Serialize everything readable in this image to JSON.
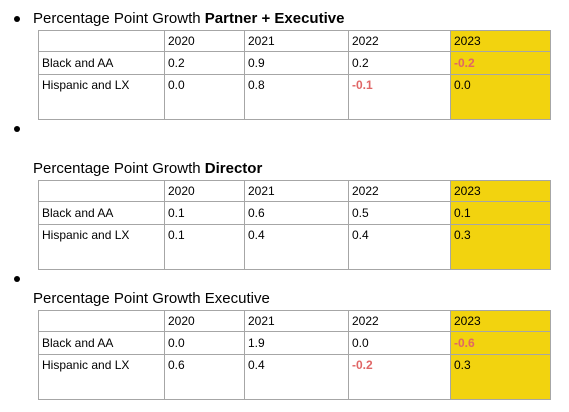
{
  "sections": [
    {
      "has_bullet": true,
      "heading_plain": "Percentage Point Growth ",
      "heading_bold": "Partner + Executive",
      "years": [
        "2020",
        "2021",
        "2022",
        "2023"
      ],
      "rows": [
        {
          "label": "Black and AA",
          "values": [
            "0.2",
            "0.9",
            "0.2",
            "-0.2"
          ]
        },
        {
          "label": "Hispanic and LX",
          "values": [
            "0.0",
            "0.8",
            "-0.1",
            "0.0"
          ]
        }
      ]
    },
    {
      "has_bullet": true,
      "heading_plain": "Percentage Point Growth ",
      "heading_bold": "Director",
      "years": [
        "2020",
        "2021",
        "2022",
        "2023"
      ],
      "rows": [
        {
          "label": "Black and AA",
          "values": [
            "0.1",
            "0.6",
            "0.5",
            "0.1"
          ]
        },
        {
          "label": "Hispanic and LX",
          "values": [
            "0.1",
            "0.4",
            "0.4",
            "0.3"
          ]
        }
      ]
    },
    {
      "has_bullet": true,
      "heading_plain": "Percentage Point Growth Executive",
      "heading_bold": "",
      "years": [
        "2020",
        "2021",
        "2022",
        "2023"
      ],
      "rows": [
        {
          "label": "Black and AA",
          "values": [
            "0.0",
            "1.9",
            "0.0",
            "-0.6"
          ]
        },
        {
          "label": "Hispanic and LX",
          "values": [
            "0.6",
            "0.4",
            "-0.2",
            "0.3"
          ]
        }
      ]
    }
  ],
  "colors": {
    "highlight": "#f2d30f",
    "negative": "#e06666",
    "border": "#a6a6a6"
  }
}
